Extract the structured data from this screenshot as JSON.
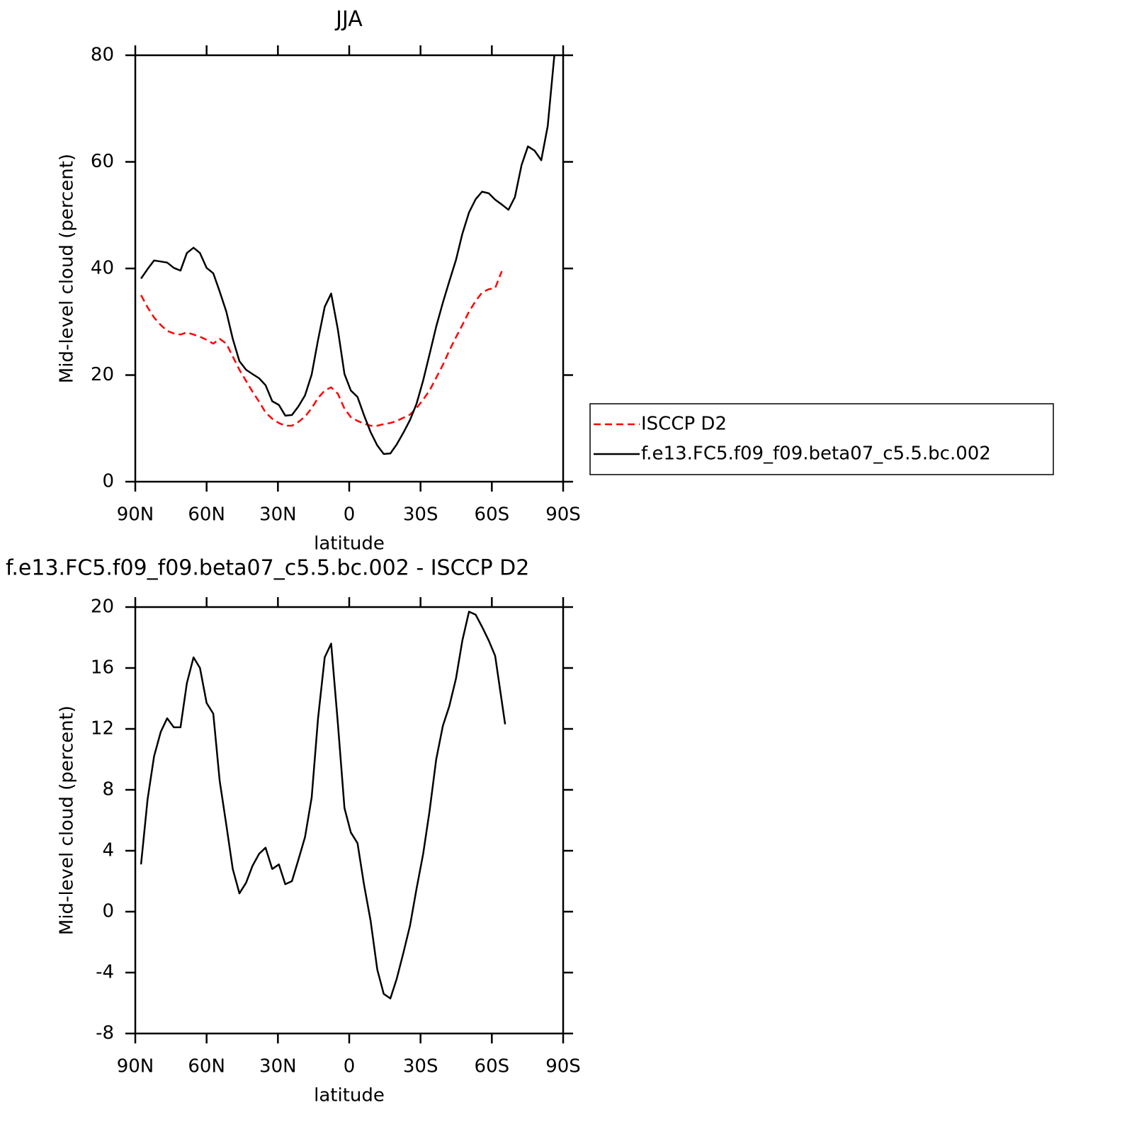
{
  "chart_data": [
    {
      "type": "line",
      "title": "JJA",
      "xlabel": "latitude",
      "ylabel": "Mid-level cloud (percent)",
      "x": [
        87.6,
        84.8,
        82.1,
        79.3,
        76.6,
        73.8,
        71.0,
        68.3,
        65.5,
        62.8,
        60.0,
        57.2,
        54.5,
        51.7,
        49.0,
        46.2,
        43.4,
        40.7,
        37.9,
        35.2,
        32.4,
        29.6,
        26.9,
        24.1,
        21.4,
        18.6,
        15.8,
        13.1,
        10.3,
        7.6,
        4.8,
        2.0,
        -0.7,
        -3.5,
        -6.2,
        -9.0,
        -11.8,
        -14.5,
        -17.3,
        -20.0,
        -22.8,
        -25.6,
        -28.3,
        -31.1,
        -33.8,
        -36.6,
        -39.4,
        -42.1,
        -44.9,
        -47.6,
        -50.4,
        -53.2,
        -55.9,
        -58.7,
        -61.4,
        -64.2,
        -67.0,
        -69.7,
        -72.5,
        -75.2,
        -78.0,
        -80.8,
        -83.5,
        -86.3
      ],
      "series": [
        {
          "name": "ISCCP D2",
          "color": "#ff0000",
          "linestyle": "dashed",
          "values": [
            35.0,
            32.7,
            30.8,
            29.4,
            28.3,
            27.8,
            27.6,
            28.0,
            27.6,
            27.2,
            26.6,
            25.9,
            26.8,
            25.9,
            23.5,
            21.0,
            18.9,
            16.9,
            15.0,
            13.0,
            11.8,
            11.0,
            10.5,
            10.5,
            11.2,
            12.2,
            13.8,
            15.7,
            17.1,
            17.7,
            16.5,
            13.7,
            12.1,
            11.4,
            10.9,
            10.5,
            10.5,
            10.8,
            11.0,
            11.4,
            12.0,
            12.6,
            13.8,
            15.4,
            17.1,
            19.5,
            21.9,
            24.6,
            27.1,
            29.4,
            31.9,
            33.9,
            35.5,
            36.1,
            36.3,
            39.5,
            null,
            null,
            null,
            null,
            null,
            null,
            null,
            null
          ]
        },
        {
          "name": "f.e13.FC5.f09_f09.beta07_c5.5.bc.002",
          "color": "#000000",
          "linestyle": "solid",
          "values": [
            38.1,
            39.9,
            41.5,
            41.3,
            41.1,
            40.1,
            39.6,
            42.9,
            43.9,
            42.9,
            40.1,
            39.1,
            35.7,
            31.9,
            26.8,
            22.6,
            21.0,
            20.2,
            19.4,
            18.1,
            15.1,
            14.4,
            12.4,
            12.5,
            14.1,
            16.2,
            20.1,
            26.6,
            32.8,
            35.3,
            28.6,
            20.2,
            17.1,
            15.9,
            12.5,
            9.3,
            6.8,
            5.2,
            5.3,
            7.0,
            9.2,
            11.6,
            14.6,
            19.0,
            23.9,
            29.1,
            33.6,
            37.6,
            41.6,
            46.5,
            50.5,
            53.0,
            54.4,
            54.1,
            52.9,
            52.0,
            51.0,
            53.4,
            59.4,
            62.9,
            62.1,
            60.3,
            66.7,
            80
          ]
        }
      ],
      "xlim": [
        90,
        -90
      ],
      "xticks": [
        {
          "value": 90,
          "label": "90N"
        },
        {
          "value": 60,
          "label": "60N"
        },
        {
          "value": 30,
          "label": "30N"
        },
        0,
        {
          "value": -30,
          "label": "30S"
        },
        {
          "value": -60,
          "label": "60S"
        },
        {
          "value": -90,
          "label": "90S"
        }
      ],
      "ylim": [
        0,
        80
      ],
      "yticks": [
        0,
        20,
        40,
        60,
        80
      ],
      "legend": "right"
    },
    {
      "type": "line",
      "title": "f.e13.FC5.f09_f09.beta07_c5.5.bc.002 - ISCCP D2",
      "xlabel": "latitude",
      "ylabel": "Mid-level cloud (percent)",
      "x": [
        87.6,
        84.8,
        82.1,
        79.3,
        76.6,
        73.8,
        71.0,
        68.3,
        65.5,
        62.8,
        60.0,
        57.2,
        54.5,
        51.7,
        49.0,
        46.2,
        43.4,
        40.7,
        37.9,
        35.2,
        32.4,
        29.6,
        26.9,
        24.1,
        21.4,
        18.6,
        15.8,
        13.1,
        10.3,
        7.6,
        4.8,
        2.0,
        -0.7,
        -3.5,
        -6.2,
        -9.0,
        -11.8,
        -14.5,
        -17.3,
        -20.0,
        -22.8,
        -25.6,
        -28.3,
        -31.1,
        -33.8,
        -36.6,
        -39.4,
        -42.1,
        -44.9,
        -47.6,
        -50.4,
        -53.2,
        -55.9,
        -58.7,
        -61.4,
        -65.6
      ],
      "series": [
        {
          "color": "#000000",
          "linestyle": "solid",
          "values": [
            3.1,
            7.4,
            10.2,
            11.8,
            12.7,
            12.1,
            12.1,
            15.0,
            16.7,
            16.0,
            13.7,
            13.0,
            8.6,
            5.7,
            2.8,
            1.2,
            1.9,
            3.0,
            3.8,
            4.2,
            2.8,
            3.1,
            1.8,
            2.0,
            3.4,
            4.9,
            7.5,
            12.7,
            16.7,
            17.6,
            12.4,
            6.8,
            5.2,
            4.5,
            1.8,
            -0.6,
            -3.8,
            -5.4,
            -5.7,
            -4.4,
            -2.7,
            -0.9,
            1.5,
            3.8,
            6.6,
            10.0,
            12.2,
            13.5,
            15.3,
            17.8,
            19.7,
            19.5,
            18.7,
            17.8,
            16.8,
            12.3
          ]
        }
      ],
      "xlim": [
        90,
        -90
      ],
      "xticks": [
        {
          "value": 90,
          "label": "90N"
        },
        {
          "value": 60,
          "label": "60N"
        },
        {
          "value": 30,
          "label": "30N"
        },
        0,
        {
          "value": -30,
          "label": "30S"
        },
        {
          "value": -60,
          "label": "60S"
        },
        {
          "value": -90,
          "label": "90S"
        }
      ],
      "ylim": [
        -8,
        20
      ],
      "yticks": [
        -8,
        -4,
        0,
        4,
        8,
        12,
        16,
        20
      ]
    }
  ]
}
